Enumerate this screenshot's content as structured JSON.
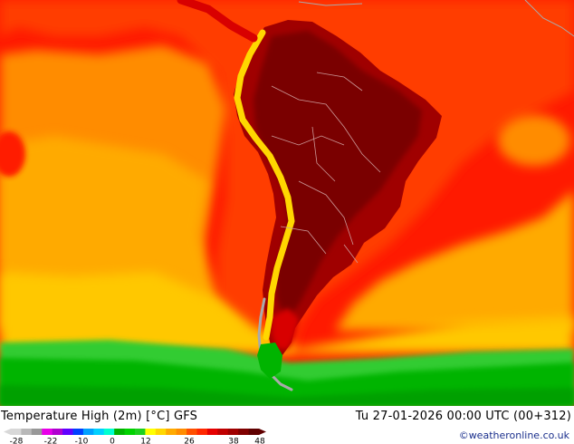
{
  "map": {
    "title": "Temperature High (2m) [°C] GFS",
    "datetime": "Tu 27-01-2026 00:00 UTC (00+312)",
    "credit": "©weatheronline.co.uk",
    "colors": {
      "ocean_hot": "#ff1a00",
      "ocean_warm": "#ff3c00",
      "ocean_orange": "#ff8c00",
      "ocean_amber": "#ffaa00",
      "ocean_yellow": "#ffc800",
      "ocean_lightgreen": "#33cc33",
      "ocean_green": "#00b400",
      "ocean_deepgreen": "#00a000",
      "land_hot": "#a00000",
      "land_dark": "#7a0000",
      "land_red": "#d80000",
      "andes_yellow": "#ffd700",
      "andes_gray": "#aaaaaa",
      "border": "#cc9999"
    }
  },
  "scale": {
    "labels": [
      "-28",
      "-22",
      "-10",
      "0",
      "12",
      "26",
      "38",
      "48"
    ],
    "colors": [
      "#d8d8d8",
      "#b8b8b8",
      "#989898",
      "#e800e8",
      "#b000d0",
      "#6000ff",
      "#0040ff",
      "#00a0ff",
      "#00d0ff",
      "#00ffd0",
      "#00b400",
      "#00d200",
      "#1ed01e",
      "#ffff00",
      "#ffd700",
      "#ffaa00",
      "#ff8c00",
      "#ff5000",
      "#ff2800",
      "#e60000",
      "#c00000",
      "#a00000",
      "#800000",
      "#600000"
    ]
  }
}
